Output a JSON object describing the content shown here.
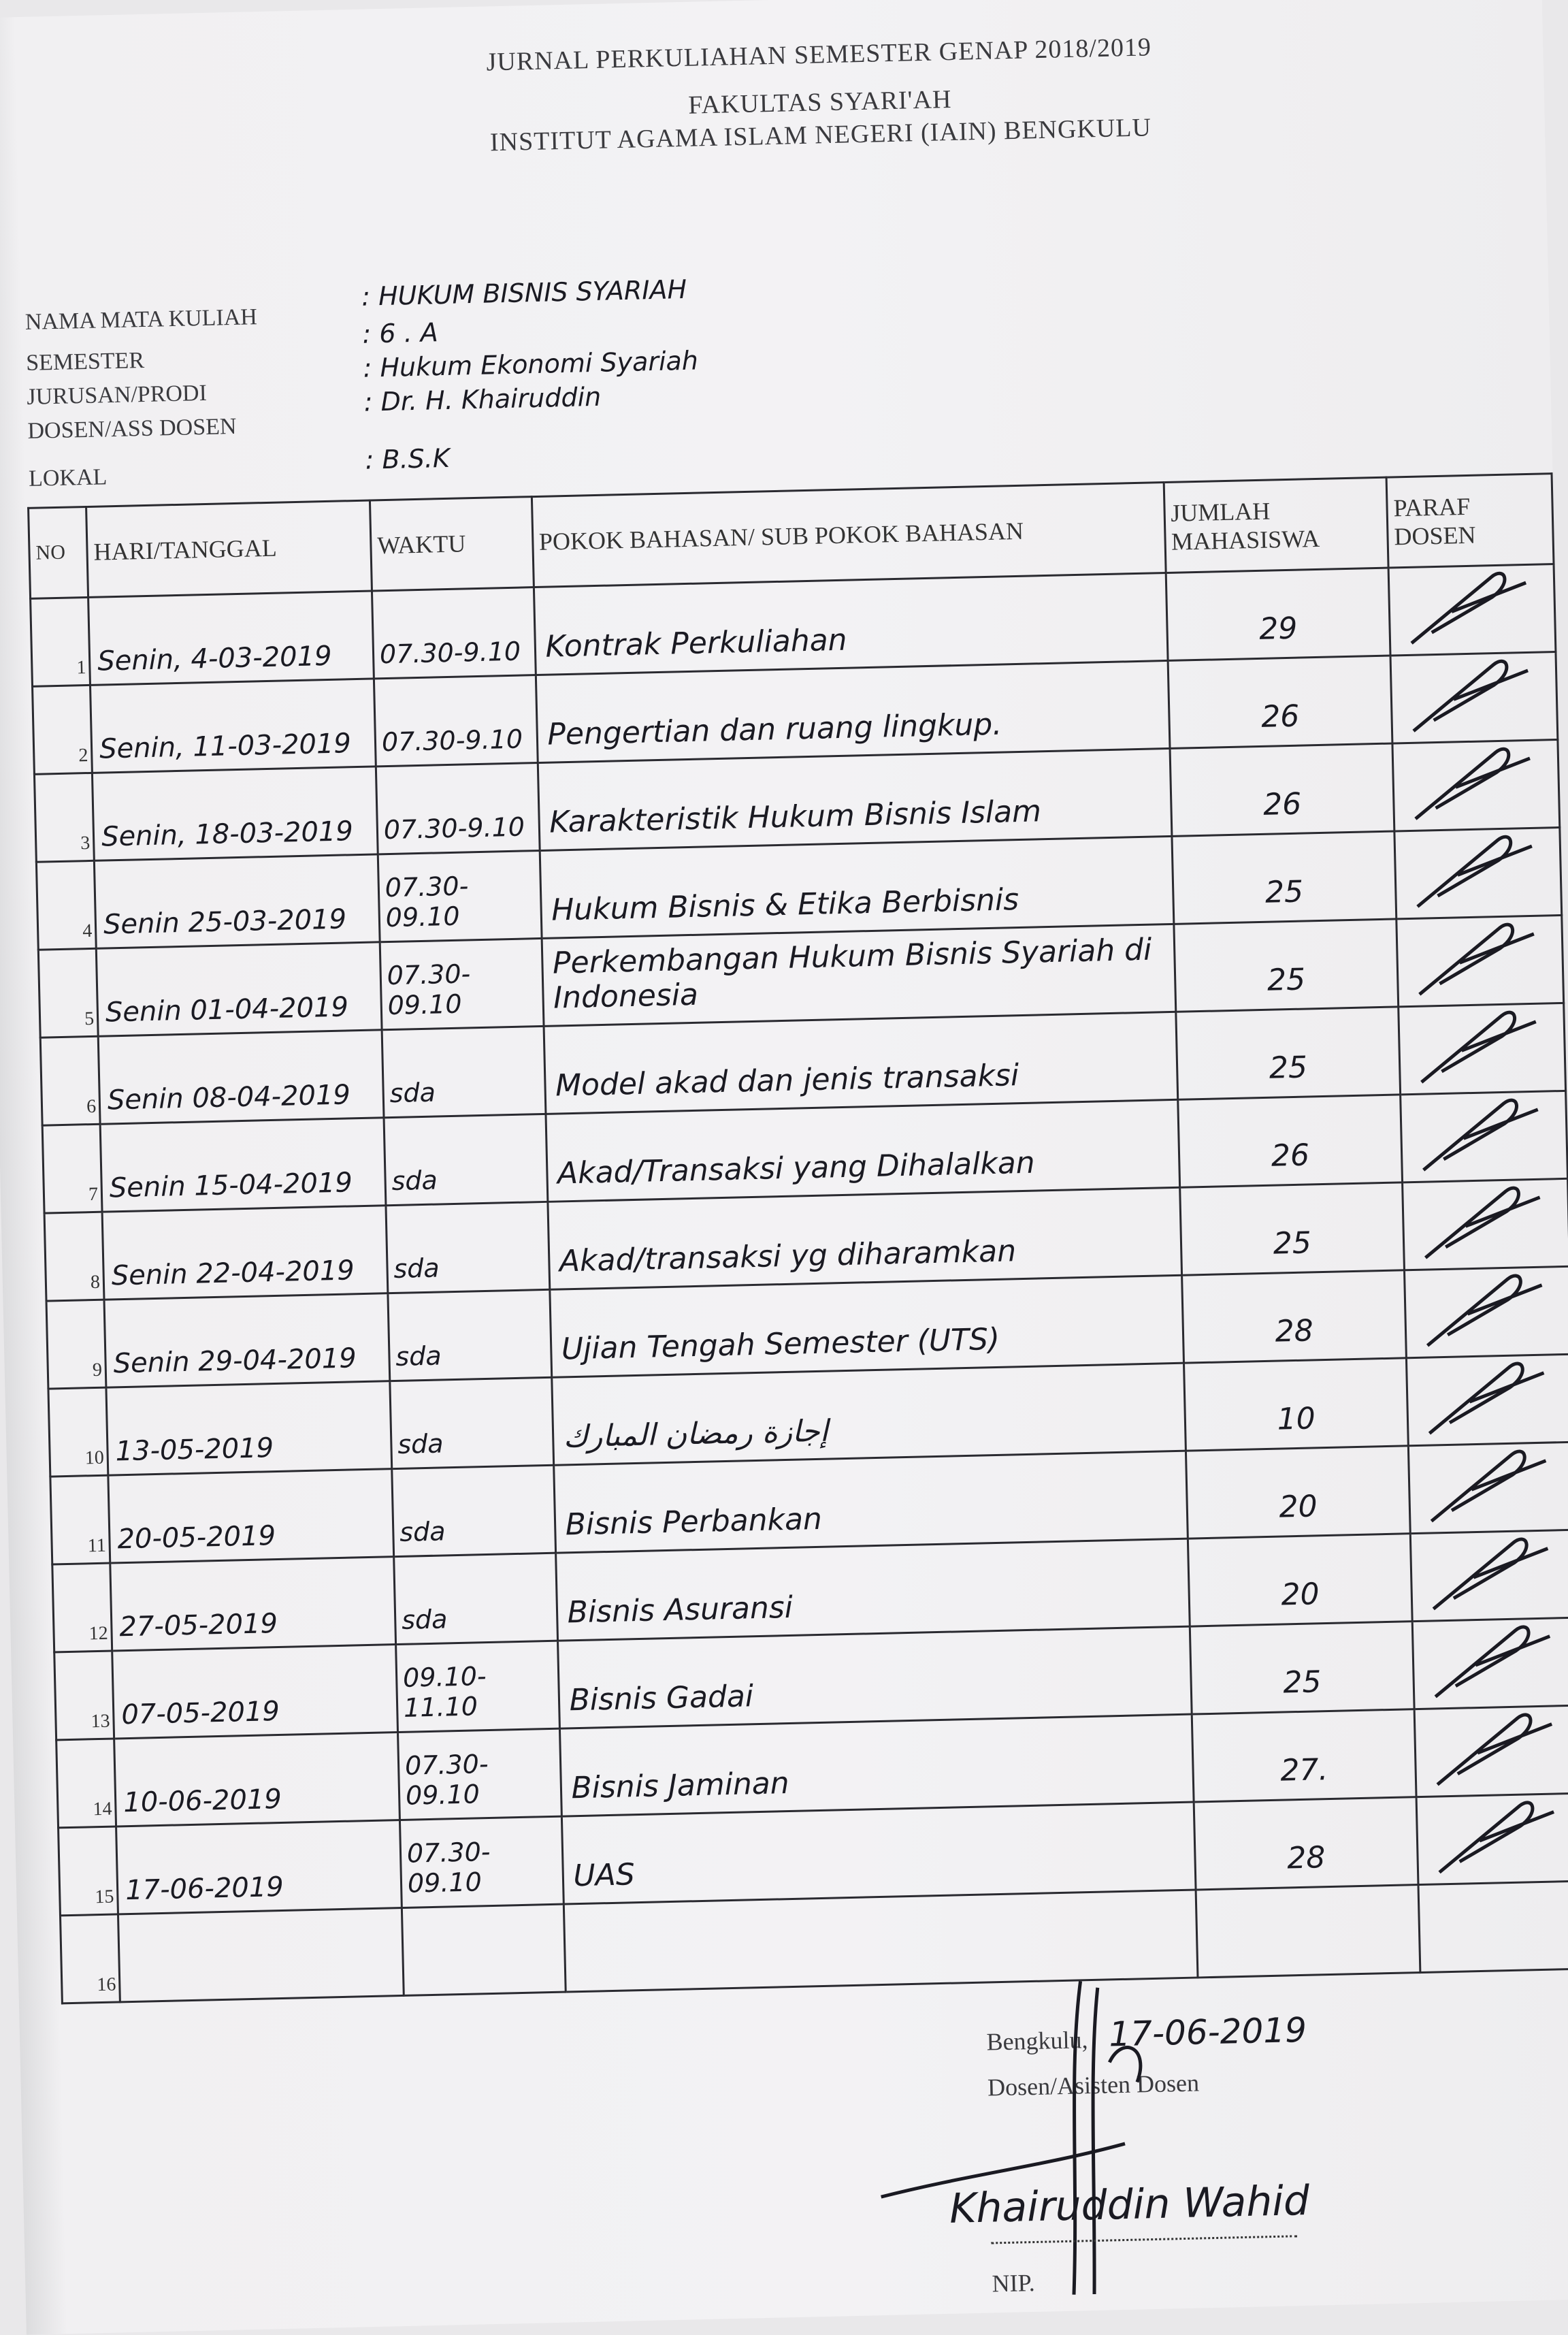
{
  "header": {
    "title_lines": [
      "JURNAL PERKULIAHAN SEMESTER GENAP 2018/2019",
      "FAKULTAS SYARI'AH",
      "INSTITUT AGAMA ISLAM NEGERI (IAIN) BENGKULU"
    ],
    "fields": [
      {
        "label": "NAMA MATA KULIAH",
        "value": ": HUKUM BISNIS SYARIAH"
      },
      {
        "label": "SEMESTER",
        "value": ": 6 . A"
      },
      {
        "label": "JURUSAN/PRODI",
        "value": ": Hukum Ekonomi Syariah"
      },
      {
        "label": "DOSEN/ASS DOSEN",
        "value": ": Dr. H. Khairuddin"
      },
      {
        "label": "LOKAL",
        "value": ": B.S.K"
      }
    ]
  },
  "table": {
    "columns": [
      "NO",
      "HARI/TANGGAL",
      "WAKTU",
      "POKOK BAHASAN/ SUB POKOK BAHASAN",
      "JUMLAH MAHASISWA",
      "PARAF DOSEN"
    ],
    "rows": [
      {
        "no": "1",
        "date": "Senin, 4-03-2019",
        "time": "07.30-9.10",
        "topic": "Kontrak Perkuliahan",
        "count": "29"
      },
      {
        "no": "2",
        "date": "Senin, 11-03-2019",
        "time": "07.30-9.10",
        "topic": "Pengertian dan ruang lingkup.",
        "count": "26"
      },
      {
        "no": "3",
        "date": "Senin, 18-03-2019",
        "time": "07.30-9.10",
        "topic": "Karakteristik Hukum Bisnis Islam",
        "count": "26"
      },
      {
        "no": "4",
        "date": "Senin 25-03-2019",
        "time": "07.30-09.10",
        "topic": "Hukum Bisnis & Etika Berbisnis",
        "count": "25"
      },
      {
        "no": "5",
        "date": "Senin 01-04-2019",
        "time": "07.30-09.10",
        "topic": "Perkembangan Hukum Bisnis Syariah di Indonesia",
        "count": "25"
      },
      {
        "no": "6",
        "date": "Senin 08-04-2019",
        "time": "sda",
        "topic": "Model akad dan jenis transaksi",
        "count": "25"
      },
      {
        "no": "7",
        "date": "Senin 15-04-2019",
        "time": "sda",
        "topic": "Akad/Transaksi yang Dihalalkan",
        "count": "26"
      },
      {
        "no": "8",
        "date": "Senin 22-04-2019",
        "time": "sda",
        "topic": "Akad/transaksi yg diharamkan",
        "count": "25"
      },
      {
        "no": "9",
        "date": "Senin 29-04-2019",
        "time": "sda",
        "topic": "Ujian Tengah Semester (UTS)",
        "count": "28"
      },
      {
        "no": "10",
        "date": "13-05-2019",
        "time": "sda",
        "topic": "إجازة رمضان المبارك",
        "count": "10"
      },
      {
        "no": "11",
        "date": "20-05-2019",
        "time": "sda",
        "topic": "Bisnis Perbankan",
        "count": "20"
      },
      {
        "no": "12",
        "date": "27-05-2019",
        "time": "sda",
        "topic": "Bisnis Asuransi",
        "count": "20"
      },
      {
        "no": "13",
        "date": "07-05-2019",
        "time": "09.10-11.10",
        "topic": "Bisnis Gadai",
        "count": "25"
      },
      {
        "no": "14",
        "date": "10-06-2019",
        "time": "07.30-09.10",
        "topic": "Bisnis Jaminan",
        "count": "27."
      },
      {
        "no": "15",
        "date": "17-06-2019",
        "time": "07.30-09.10",
        "topic": "UAS",
        "count": "28"
      },
      {
        "no": "16",
        "date": "",
        "time": "",
        "topic": "",
        "count": ""
      }
    ]
  },
  "footer": {
    "place": "Bengkulu,",
    "date": "17-06-2019",
    "role": "Dosen/Asisten Dosen",
    "name": "Khairuddin Wahid",
    "nip_label": "NIP."
  }
}
